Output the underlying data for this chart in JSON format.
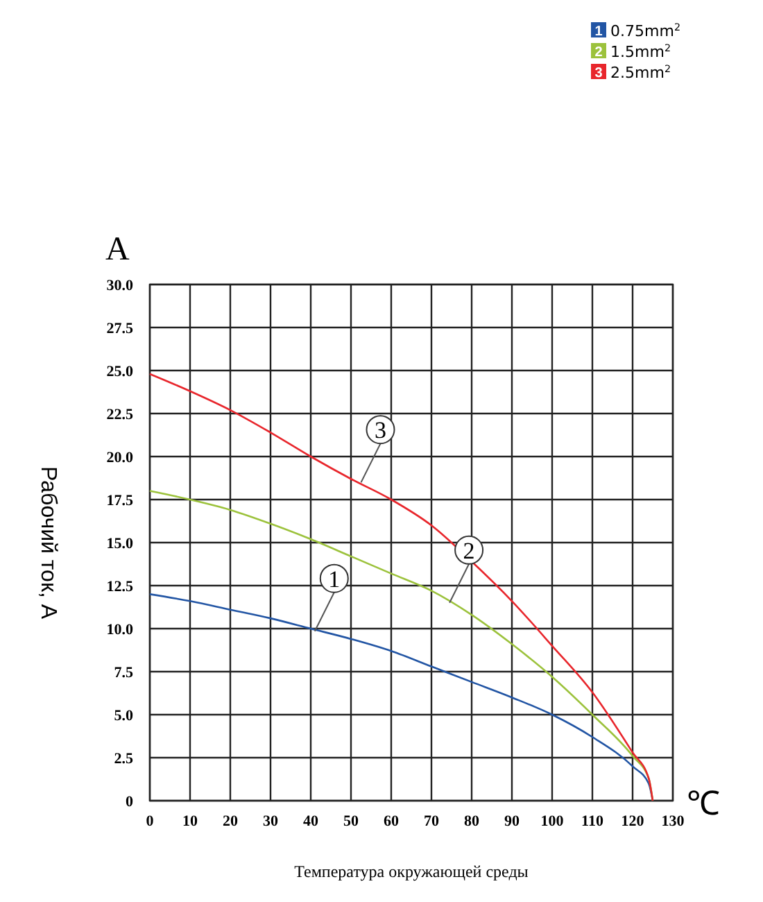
{
  "chart_data": {
    "type": "line",
    "xlabel": "Температура окружающей среды",
    "ylabel": "Рабочий ток, А",
    "annotations": [
      "A",
      "℃",
      {
        "text": "1",
        "x": 41,
        "y": 9.85
      },
      {
        "text": "2",
        "x": 74.5,
        "y": 11.5
      },
      {
        "text": "3",
        "x": 52.5,
        "y": 18.5
      }
    ],
    "x": [
      0,
      10,
      20,
      30,
      40,
      50,
      60,
      70,
      80,
      90,
      100,
      110,
      120,
      124,
      125
    ],
    "series": [
      {
        "name": "0.75mm$^{2}$",
        "color": "#2255a4",
        "values": [
          12.0,
          11.6,
          11.1,
          10.6,
          10.0,
          9.4,
          8.7,
          7.8,
          6.9,
          6.0,
          5.0,
          3.7,
          2.0,
          1.0,
          0
        ]
      },
      {
        "name": "1.5mm$^{2}$",
        "color": "#9cc23c",
        "values": [
          18.0,
          17.5,
          16.9,
          16.1,
          15.2,
          14.2,
          13.2,
          12.2,
          10.8,
          9.1,
          7.2,
          5.0,
          2.6,
          1.3,
          0
        ]
      },
      {
        "name": "2.5mm$^{2}$",
        "color": "#e8262c",
        "values": [
          24.8,
          23.8,
          22.7,
          21.4,
          20.0,
          18.7,
          17.5,
          16.0,
          13.9,
          11.6,
          9.0,
          6.3,
          2.8,
          1.3,
          0
        ]
      }
    ],
    "xlim": [
      0,
      130
    ],
    "ylim": [
      0,
      30
    ],
    "xticks": [
      0,
      10,
      20,
      30,
      40,
      50,
      60,
      70,
      80,
      90,
      100,
      110,
      120,
      130
    ],
    "yticks": [
      0,
      {
        "value": 2.5,
        "label": "2.5"
      },
      {
        "value": 5,
        "label": "5.0"
      },
      7.5,
      {
        "value": 10,
        "label": "10.0"
      },
      12.5,
      {
        "value": 15,
        "label": "15.0"
      },
      17.5,
      {
        "value": 20,
        "label": "20.0"
      },
      22.5,
      {
        "value": 25,
        "label": "25.0"
      },
      27.5,
      {
        "value": 30,
        "label": "30.0"
      }
    ],
    "grid": true,
    "legend": "top right",
    "marker": "none",
    "line_style": "solid"
  }
}
